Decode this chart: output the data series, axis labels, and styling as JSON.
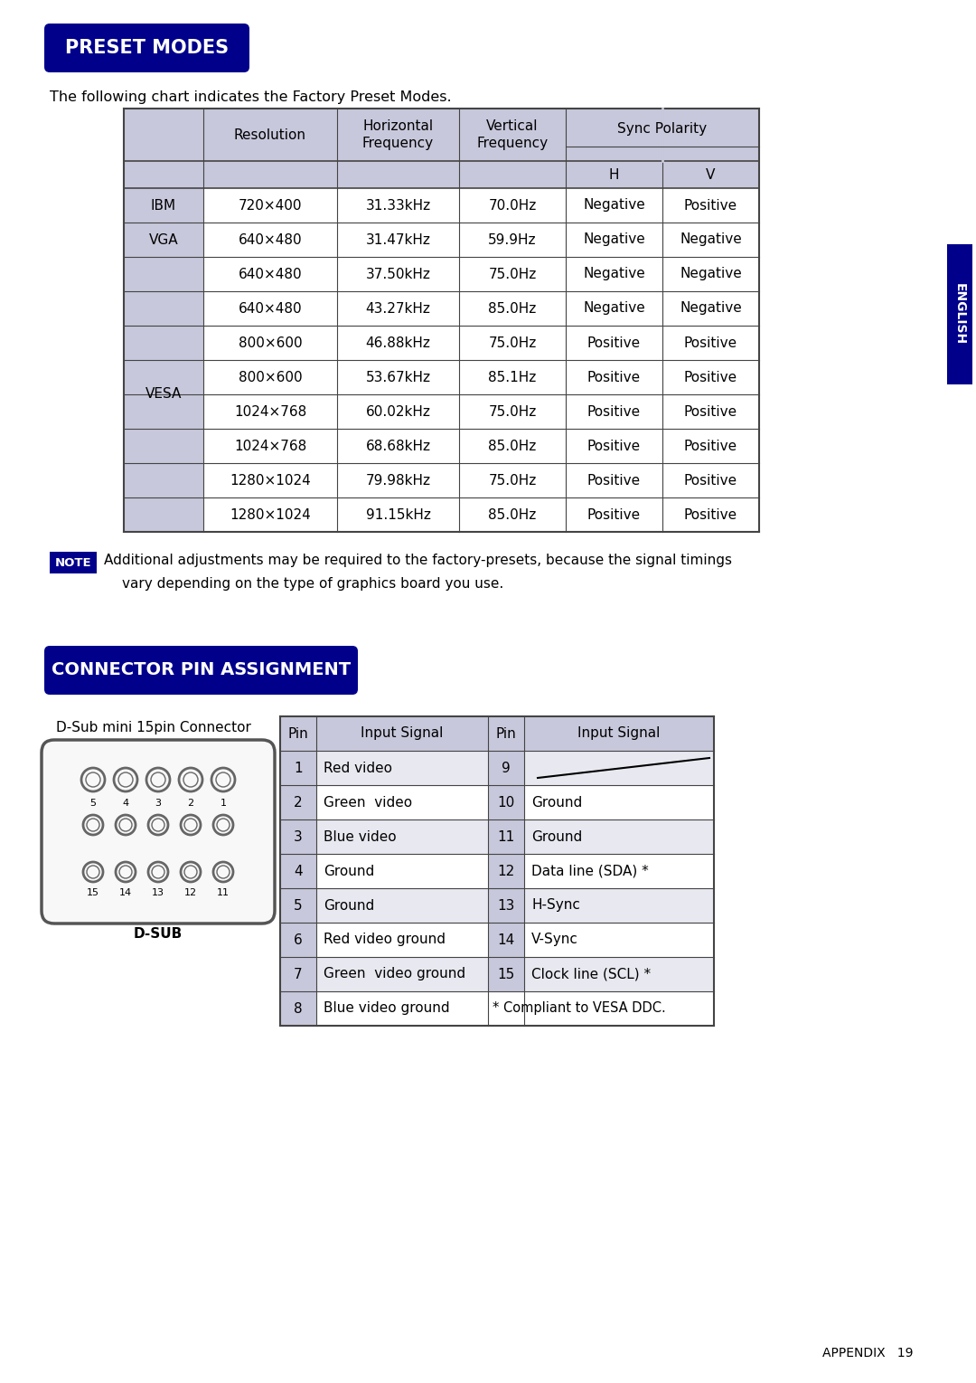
{
  "bg_color": "#ffffff",
  "dark_blue": "#00008B",
  "header_bg": "#c8c8dc",
  "border_color": "#444444",
  "text_color": "#000000",
  "preset_title": "PRESET MODES",
  "preset_subtitle": "The following chart indicates the Factory Preset Modes.",
  "table1_rows": [
    [
      "IBM",
      "720×400",
      "31.33kHz",
      "70.0Hz",
      "Negative",
      "Positive"
    ],
    [
      "VGA",
      "640×480",
      "31.47kHz",
      "59.9Hz",
      "Negative",
      "Negative"
    ],
    [
      "VESA",
      "640×480",
      "37.50kHz",
      "75.0Hz",
      "Negative",
      "Negative"
    ],
    [
      "",
      "640×480",
      "43.27kHz",
      "85.0Hz",
      "Negative",
      "Negative"
    ],
    [
      "",
      "800×600",
      "46.88kHz",
      "75.0Hz",
      "Positive",
      "Positive"
    ],
    [
      "",
      "800×600",
      "53.67kHz",
      "85.1Hz",
      "Positive",
      "Positive"
    ],
    [
      "",
      "1024×768",
      "60.02kHz",
      "75.0Hz",
      "Positive",
      "Positive"
    ],
    [
      "",
      "1024×768",
      "68.68kHz",
      "85.0Hz",
      "Positive",
      "Positive"
    ],
    [
      "",
      "1280×1024",
      "79.98kHz",
      "75.0Hz",
      "Positive",
      "Positive"
    ],
    [
      "",
      "1280×1024",
      "91.15kHz",
      "85.0Hz",
      "Positive",
      "Positive"
    ]
  ],
  "note_label": "NOTE",
  "note_text1": "Additional adjustments may be required to the factory-presets, because the signal timings",
  "note_text2": "vary depending on the type of graphics board you use.",
  "connector_title": "CONNECTOR PIN ASSIGNMENT",
  "dsub_label": "D-Sub mini 15pin Connector",
  "dsub_caption": "D-SUB",
  "pin_left": [
    "1",
    "2",
    "3",
    "4",
    "5",
    "6",
    "7",
    "8"
  ],
  "pin_left_sig": [
    "Red video",
    "Green  video",
    "Blue video",
    "Ground",
    "Ground",
    "Red video ground",
    "Green  video ground",
    "Blue video ground"
  ],
  "pin_right": [
    "9",
    "10",
    "11",
    "12",
    "13",
    "14",
    "15",
    ""
  ],
  "pin_right_sig": [
    "",
    "Ground",
    "Ground",
    "Data line (SDA) *",
    "H-Sync",
    "V-Sync",
    "Clock line (SCL) *",
    "* Compliant to VESA DDC."
  ],
  "english_label": "ENGLISH",
  "appendix_text": "APPENDIX   19"
}
